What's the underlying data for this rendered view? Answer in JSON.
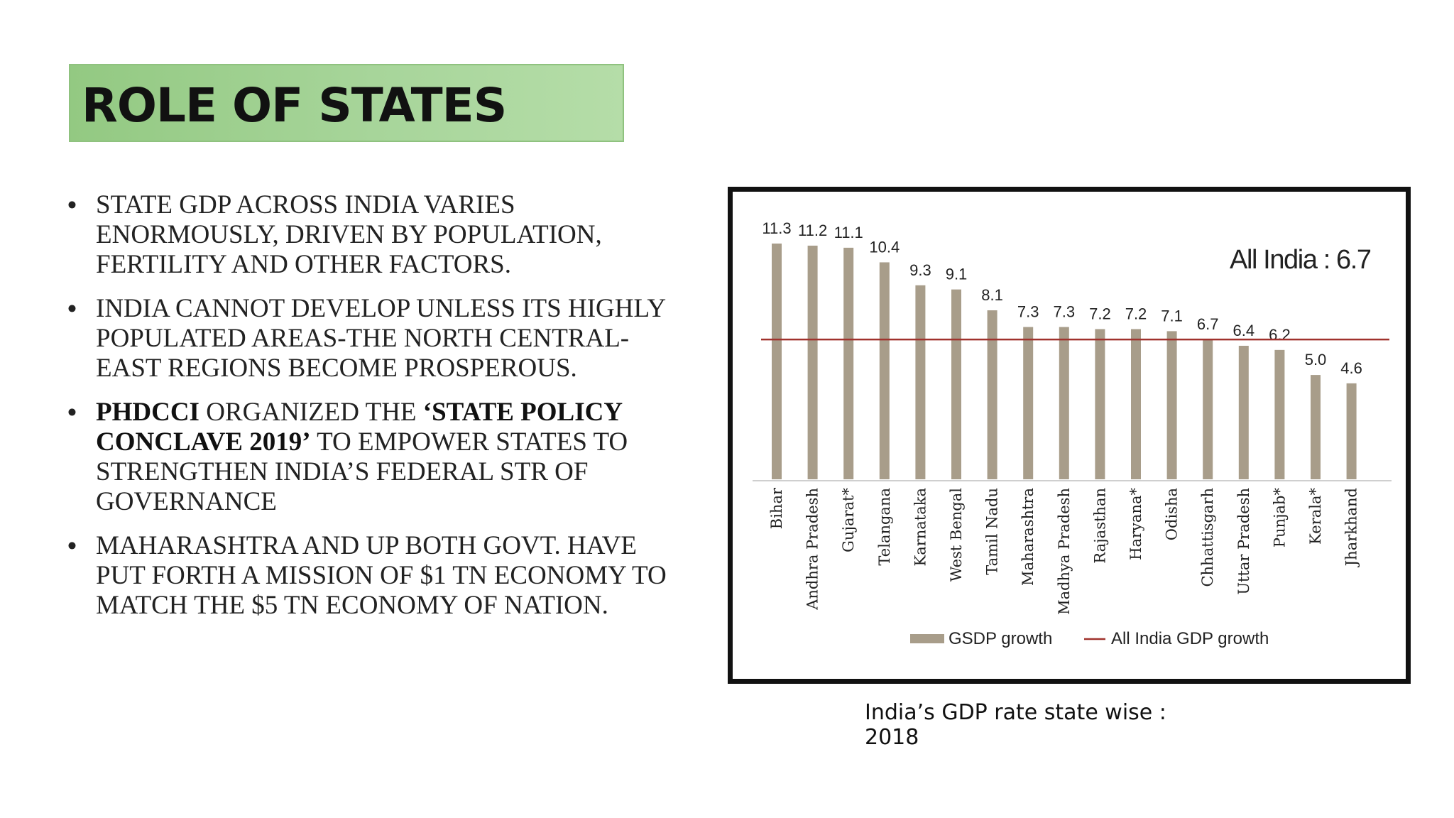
{
  "slide": {
    "title": "ROLE OF STATES",
    "title_bg_color": "#a7d59a",
    "bullets": [
      {
        "parts": [
          {
            "text": "STATE GDP ACROSS INDIA VARIES ENORMOUSLY, DRIVEN BY POPULATION, FERTILITY AND OTHER FACTORS.",
            "bold": false
          }
        ]
      },
      {
        "parts": [
          {
            "text": "INDIA CANNOT DEVELOP UNLESS ITS HIGHLY POPULATED AREAS-THE NORTH CENTRAL-EAST REGIONS BECOME PROSPEROUS.",
            "bold": false
          }
        ]
      },
      {
        "parts": [
          {
            "text": "PHDCCI",
            "bold": true
          },
          {
            "text": " ORGANIZED THE ",
            "bold": false
          },
          {
            "text": "‘STATE POLICY CONCLAVE 2019’",
            "bold": true
          },
          {
            "text": " TO EMPOWER STATES TO STRENGTHEN INDIA’S FEDERAL STR OF GOVERNANCE",
            "bold": false
          }
        ]
      },
      {
        "parts": [
          {
            "text": "MAHARASHTRA AND UP BOTH GOVT. HAVE PUT FORTH A MISSION OF $1 TN ECONOMY TO MATCH THE $5 TN ECONOMY OF NATION.",
            "bold": false
          }
        ]
      }
    ],
    "caption": "India’s GDP rate state wise : 2018"
  },
  "chart_data": {
    "type": "bar",
    "categories": [
      "Bihar",
      "Andhra Pradesh",
      "Gujarat*",
      "Telangana",
      "Karnataka",
      "West Bengal",
      "Tamil Nadu",
      "Maharashtra",
      "Madhya Pradesh",
      "Rajasthan",
      "Haryana*",
      "Odisha",
      "Chhattisgarh",
      "Uttar Pradesh",
      "Punjab*",
      "Kerala*",
      "Jharkhand"
    ],
    "series": [
      {
        "name": "GSDP growth",
        "values": [
          11.3,
          11.2,
          11.1,
          10.4,
          9.3,
          9.1,
          8.1,
          7.3,
          7.3,
          7.2,
          7.2,
          7.1,
          6.7,
          6.4,
          6.2,
          5.0,
          4.6
        ],
        "color": "#a89d8a"
      }
    ],
    "reference_line": {
      "name": "All India GDP growth",
      "value": 6.7,
      "color": "#a0322d"
    },
    "value_labels": [
      "11.3",
      "11.2",
      "11.1",
      "10.4",
      "9.3",
      "9.1",
      "8.1",
      "7.3",
      "7.3",
      "7.2",
      "7.2",
      "7.1",
      "6.7",
      "6.4",
      "6.2",
      "5.0",
      "4.6"
    ],
    "annotation": "All India : 6.7",
    "ylim": [
      0,
      11.3
    ],
    "grid": false,
    "legend_position": "bottom"
  }
}
